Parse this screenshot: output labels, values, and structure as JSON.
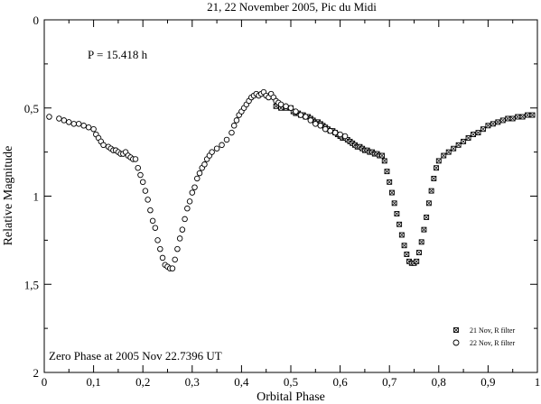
{
  "chart_data": {
    "type": "scatter",
    "title": "21, 22 November 2005, Pic du Midi",
    "xlabel": "Orbital Phase",
    "ylabel": "Relative Magnitude",
    "xlim": [
      0,
      1
    ],
    "ylim": [
      2,
      0
    ],
    "y_inverted": true,
    "x_ticks": [
      0,
      0.1,
      0.2,
      0.3,
      0.4,
      0.5,
      0.6,
      0.7,
      0.8,
      0.9,
      1
    ],
    "x_tick_labels": [
      "0",
      "0,1",
      "0,2",
      "0,3",
      "0,4",
      "0,5",
      "0,6",
      "0,7",
      "0,8",
      "0,9",
      "1"
    ],
    "y_ticks": [
      0,
      0.5,
      1,
      1.5,
      2
    ],
    "y_tick_labels": [
      "0",
      "0,5",
      "1",
      "1,5",
      "2"
    ],
    "grid": false,
    "legend_position": "bottom-right",
    "annotations": {
      "period": "P = 15.418 h",
      "zero_phase": "Zero Phase at 2005 Nov 22.7396 UT"
    },
    "series": [
      {
        "name": "21 Nov, R filter",
        "marker": "square",
        "x": [
          0.47,
          0.48,
          0.49,
          0.5,
          0.505,
          0.51,
          0.515,
          0.52,
          0.525,
          0.53,
          0.535,
          0.54,
          0.545,
          0.55,
          0.555,
          0.56,
          0.565,
          0.57,
          0.575,
          0.58,
          0.585,
          0.59,
          0.595,
          0.6,
          0.605,
          0.61,
          0.615,
          0.62,
          0.625,
          0.63,
          0.635,
          0.64,
          0.645,
          0.65,
          0.655,
          0.66,
          0.665,
          0.67,
          0.675,
          0.68,
          0.685,
          0.69,
          0.695,
          0.7,
          0.705,
          0.71,
          0.715,
          0.72,
          0.725,
          0.73,
          0.735,
          0.74,
          0.745,
          0.75,
          0.755,
          0.76,
          0.765,
          0.77,
          0.775,
          0.78,
          0.785,
          0.79,
          0.795,
          0.8,
          0.81,
          0.82,
          0.83,
          0.84,
          0.85,
          0.86,
          0.87,
          0.88,
          0.89,
          0.9,
          0.91,
          0.92,
          0.93,
          0.94,
          0.95,
          0.96,
          0.97,
          0.98,
          0.99
        ],
        "y": [
          0.49,
          0.5,
          0.5,
          0.5,
          0.52,
          0.53,
          0.53,
          0.54,
          0.54,
          0.55,
          0.55,
          0.56,
          0.57,
          0.58,
          0.58,
          0.59,
          0.6,
          0.61,
          0.62,
          0.63,
          0.63,
          0.64,
          0.65,
          0.66,
          0.67,
          0.67,
          0.68,
          0.69,
          0.7,
          0.71,
          0.72,
          0.72,
          0.73,
          0.74,
          0.74,
          0.75,
          0.75,
          0.76,
          0.76,
          0.77,
          0.77,
          0.8,
          0.86,
          0.92,
          0.98,
          1.04,
          1.1,
          1.16,
          1.22,
          1.28,
          1.33,
          1.37,
          1.38,
          1.38,
          1.37,
          1.32,
          1.26,
          1.19,
          1.12,
          1.04,
          0.97,
          0.9,
          0.84,
          0.8,
          0.77,
          0.75,
          0.73,
          0.71,
          0.69,
          0.67,
          0.65,
          0.64,
          0.62,
          0.6,
          0.59,
          0.58,
          0.57,
          0.56,
          0.56,
          0.55,
          0.55,
          0.54,
          0.54
        ]
      },
      {
        "name": "22 Nov, R filter",
        "marker": "circle",
        "x": [
          0.01,
          0.03,
          0.04,
          0.05,
          0.06,
          0.07,
          0.08,
          0.09,
          0.1,
          0.105,
          0.11,
          0.115,
          0.12,
          0.13,
          0.135,
          0.14,
          0.145,
          0.15,
          0.155,
          0.16,
          0.165,
          0.17,
          0.175,
          0.18,
          0.185,
          0.19,
          0.195,
          0.2,
          0.205,
          0.21,
          0.215,
          0.22,
          0.225,
          0.23,
          0.235,
          0.24,
          0.245,
          0.25,
          0.255,
          0.26,
          0.265,
          0.27,
          0.275,
          0.28,
          0.285,
          0.29,
          0.295,
          0.3,
          0.305,
          0.31,
          0.315,
          0.32,
          0.325,
          0.33,
          0.335,
          0.34,
          0.35,
          0.36,
          0.37,
          0.38,
          0.385,
          0.39,
          0.395,
          0.4,
          0.405,
          0.41,
          0.415,
          0.42,
          0.425,
          0.43,
          0.435,
          0.44,
          0.445,
          0.45,
          0.455,
          0.46,
          0.465,
          0.47,
          0.475,
          0.48,
          0.49,
          0.5,
          0.51,
          0.52,
          0.53,
          0.54,
          0.55,
          0.56,
          0.57,
          0.58,
          0.59,
          0.6,
          0.61
        ],
        "y": [
          0.55,
          0.56,
          0.57,
          0.58,
          0.59,
          0.59,
          0.6,
          0.61,
          0.62,
          0.65,
          0.67,
          0.69,
          0.71,
          0.72,
          0.73,
          0.74,
          0.74,
          0.75,
          0.76,
          0.76,
          0.75,
          0.77,
          0.78,
          0.79,
          0.79,
          0.84,
          0.88,
          0.92,
          0.97,
          1.02,
          1.08,
          1.14,
          1.18,
          1.25,
          1.3,
          1.35,
          1.39,
          1.4,
          1.41,
          1.41,
          1.36,
          1.3,
          1.24,
          1.19,
          1.13,
          1.07,
          1.03,
          0.98,
          0.95,
          0.9,
          0.87,
          0.84,
          0.82,
          0.79,
          0.77,
          0.75,
          0.73,
          0.71,
          0.68,
          0.64,
          0.6,
          0.57,
          0.54,
          0.52,
          0.5,
          0.48,
          0.46,
          0.44,
          0.43,
          0.42,
          0.43,
          0.42,
          0.41,
          0.43,
          0.44,
          0.42,
          0.44,
          0.46,
          0.47,
          0.48,
          0.49,
          0.5,
          0.52,
          0.54,
          0.55,
          0.57,
          0.59,
          0.6,
          0.62,
          0.63,
          0.64,
          0.65,
          0.66
        ]
      }
    ]
  }
}
